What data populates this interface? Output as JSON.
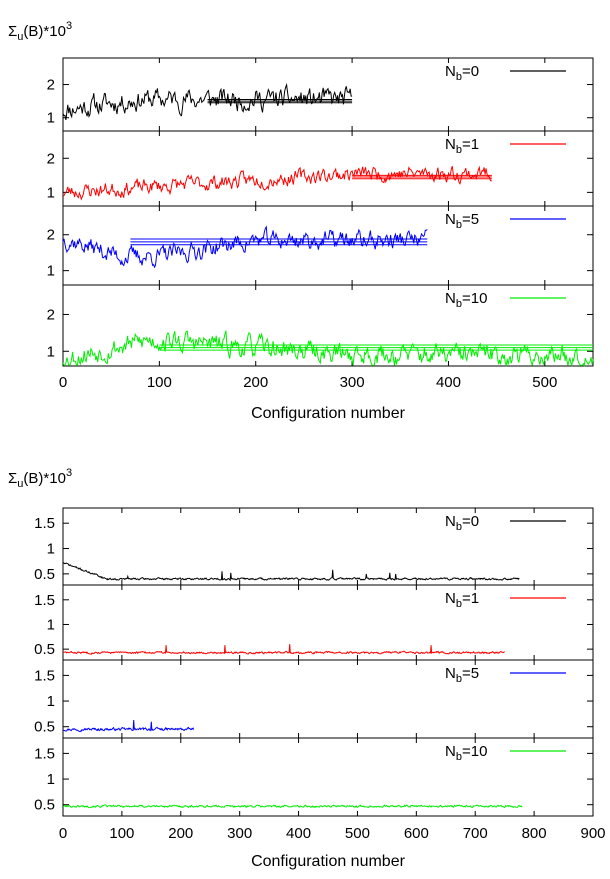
{
  "chart_data": [
    {
      "type": "line",
      "ylabel": "Σu(B)*10³",
      "ylabel_parts": {
        "sym": "Σ",
        "sub": "u",
        "mid": "(B)*10",
        "sup": "3"
      },
      "xlabel": "Configuration number",
      "xlim": [
        0,
        550
      ],
      "xticks": [
        0,
        100,
        200,
        300,
        400,
        500
      ],
      "panels": [
        {
          "legend": "Nb=0",
          "legend_main": "N",
          "legend_sub": "b",
          "legend_eq": "=0",
          "color": "#000000",
          "ylim": [
            0.6,
            2.8
          ],
          "yticks": [
            1,
            2
          ],
          "n": 300,
          "seed": 11,
          "segments": [
            [
              0,
              0,
              1.25
            ],
            [
              80,
              300,
              1.55
            ]
          ],
          "noise": 0.5,
          "band": {
            "x": [
              150,
              300
            ],
            "mean": 1.5,
            "err": 0.05
          }
        },
        {
          "legend": "Nb=1",
          "legend_main": "N",
          "legend_sub": "b",
          "legend_eq": "=1",
          "color": "#ff0000",
          "ylim": [
            0.6,
            2.8
          ],
          "yticks": [
            1,
            2
          ],
          "n": 445,
          "seed": 23,
          "segments": [
            [
              0,
              0,
              1.0
            ],
            [
              300,
              445,
              1.55
            ]
          ],
          "noise": 0.35,
          "band": {
            "x": [
              300,
              445
            ],
            "mean": 1.45,
            "err": 0.05
          }
        },
        {
          "legend": "Nb=5",
          "legend_main": "N",
          "legend_sub": "b",
          "legend_eq": "=5",
          "color": "#0000ff",
          "ylim": [
            0.6,
            2.8
          ],
          "yticks": [
            1,
            2
          ],
          "n": 378,
          "seed": 37,
          "segments": [
            [
              0,
              0,
              1.9
            ],
            [
              60,
              100,
              1.4
            ],
            [
              200,
              378,
              1.85
            ]
          ],
          "noise": 0.4,
          "band": {
            "x": [
              70,
              378
            ],
            "mean": 1.8,
            "err": 0.08
          }
        },
        {
          "legend": "Nb=10",
          "legend_main": "N",
          "legend_sub": "b",
          "legend_eq": "=10",
          "color": "#00ee00",
          "ylim": [
            0.6,
            2.8
          ],
          "yticks": [
            1,
            2
          ],
          "n": 550,
          "seed": 53,
          "segments": [
            [
              0,
              0,
              0.8
            ],
            [
              90,
              100,
              1.3
            ],
            [
              310,
              550,
              0.9
            ]
          ],
          "noise": 0.45,
          "band": {
            "x": [
              100,
              550
            ],
            "mean": 1.1,
            "err": 0.07
          }
        }
      ]
    },
    {
      "type": "line",
      "ylabel": "Σu(B)*10³",
      "ylabel_parts": {
        "sym": "Σ",
        "sub": "u",
        "mid": "(B)*10",
        "sup": "3"
      },
      "xlabel": "Configuration number",
      "xlim": [
        0,
        900
      ],
      "xticks": [
        0,
        100,
        200,
        300,
        400,
        500,
        600,
        700,
        800,
        900
      ],
      "panels": [
        {
          "legend": "Nb=0",
          "legend_main": "N",
          "legend_sub": "b",
          "legend_eq": "=0",
          "color": "#000000",
          "ylim": [
            0.28,
            1.8
          ],
          "yticks": [
            0.5,
            1,
            1.5
          ],
          "n": 775,
          "seed": 71,
          "segments": [
            [
              0,
              0,
              0.72
            ],
            [
              75,
              100,
              0.4
            ],
            [
              100,
              775,
              0.4
            ]
          ],
          "noise": 0.03,
          "spikes": [
            [
              110,
              0.45
            ],
            [
              270,
              0.55
            ],
            [
              285,
              0.52
            ],
            [
              458,
              0.58
            ],
            [
              515,
              0.5
            ],
            [
              555,
              0.52
            ],
            [
              565,
              0.5
            ]
          ]
        },
        {
          "legend": "Nb=1",
          "legend_main": "N",
          "legend_sub": "b",
          "legend_eq": "=1",
          "color": "#ff0000",
          "ylim": [
            0.28,
            1.8
          ],
          "yticks": [
            0.5,
            1,
            1.5
          ],
          "n": 750,
          "seed": 83,
          "segments": [
            [
              0,
              0,
              0.43
            ],
            [
              750,
              750,
              0.43
            ]
          ],
          "noise": 0.03,
          "spikes": [
            [
              175,
              0.58
            ],
            [
              275,
              0.58
            ],
            [
              385,
              0.6
            ],
            [
              625,
              0.58
            ]
          ]
        },
        {
          "legend": "Nb=5",
          "legend_main": "N",
          "legend_sub": "b",
          "legend_eq": "=5",
          "color": "#0000ff",
          "ylim": [
            0.28,
            1.8
          ],
          "yticks": [
            0.5,
            1,
            1.5
          ],
          "n": 222,
          "seed": 97,
          "segments": [
            [
              0,
              0,
              0.45
            ],
            [
              222,
              222,
              0.45
            ]
          ],
          "noise": 0.04,
          "spikes": [
            [
              120,
              0.63
            ],
            [
              150,
              0.6
            ]
          ]
        },
        {
          "legend": "Nb=10",
          "legend_main": "N",
          "legend_sub": "b",
          "legend_eq": "=10",
          "color": "#00ee00",
          "ylim": [
            0.28,
            1.8
          ],
          "yticks": [
            0.5,
            1,
            1.5
          ],
          "n": 780,
          "seed": 101,
          "segments": [
            [
              0,
              0,
              0.47
            ],
            [
              780,
              780,
              0.47
            ]
          ],
          "noise": 0.03,
          "spikes": []
        }
      ]
    }
  ]
}
